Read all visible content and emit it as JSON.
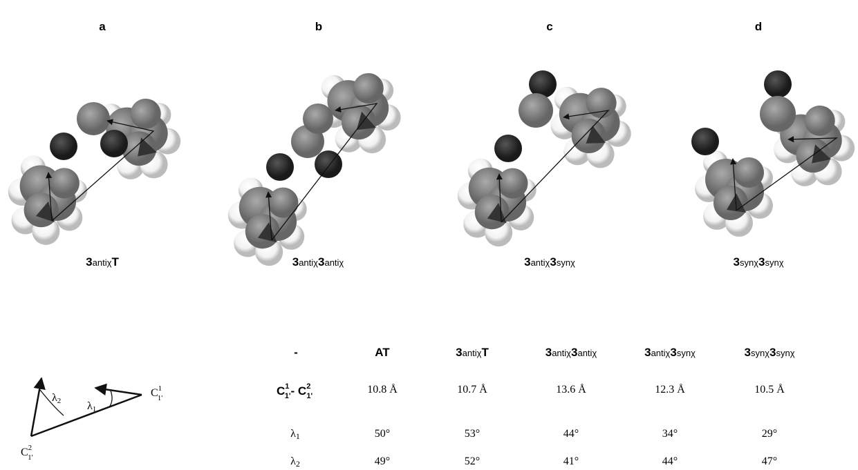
{
  "panels": [
    {
      "letter": "a",
      "label": [
        "3",
        "antiχ",
        "T"
      ]
    },
    {
      "letter": "b",
      "label": [
        "3",
        "antiχ",
        "3",
        "antiχ"
      ]
    },
    {
      "letter": "c",
      "label": [
        "3",
        "antiχ",
        "3",
        "synχ"
      ]
    },
    {
      "letter": "d",
      "label": [
        "3",
        "synχ",
        "3",
        "synχ"
      ]
    }
  ],
  "diagram": {
    "lambda1": [
      "λ",
      "1"
    ],
    "lambda2": [
      "λ",
      "2"
    ],
    "c1": [
      "C",
      "1",
      "1'"
    ],
    "c2": [
      "C",
      "2",
      "1'"
    ]
  },
  "table": {
    "header": [
      "-",
      "AT",
      [
        "3",
        "antiχ",
        "T"
      ],
      [
        "3",
        "antiχ",
        "3",
        "antiχ"
      ],
      [
        "3",
        "antiχ",
        "3",
        "synχ"
      ],
      [
        "3",
        "synχ",
        "3",
        "synχ"
      ]
    ],
    "rows": [
      {
        "label": [
          "C",
          "1",
          "1'",
          "- C",
          "2",
          "1'"
        ],
        "values": [
          "10.8 Å",
          "10.7 Å",
          "13.6 Å",
          "12.3 Å",
          "10.5 Å"
        ]
      },
      {
        "label": [
          "λ",
          "1"
        ],
        "values": [
          "50°",
          "53°",
          "44°",
          "34°",
          "29°"
        ]
      },
      {
        "label": [
          "λ",
          "2"
        ],
        "values": [
          "49°",
          "52°",
          "41°",
          "44°",
          "47°"
        ]
      }
    ]
  }
}
